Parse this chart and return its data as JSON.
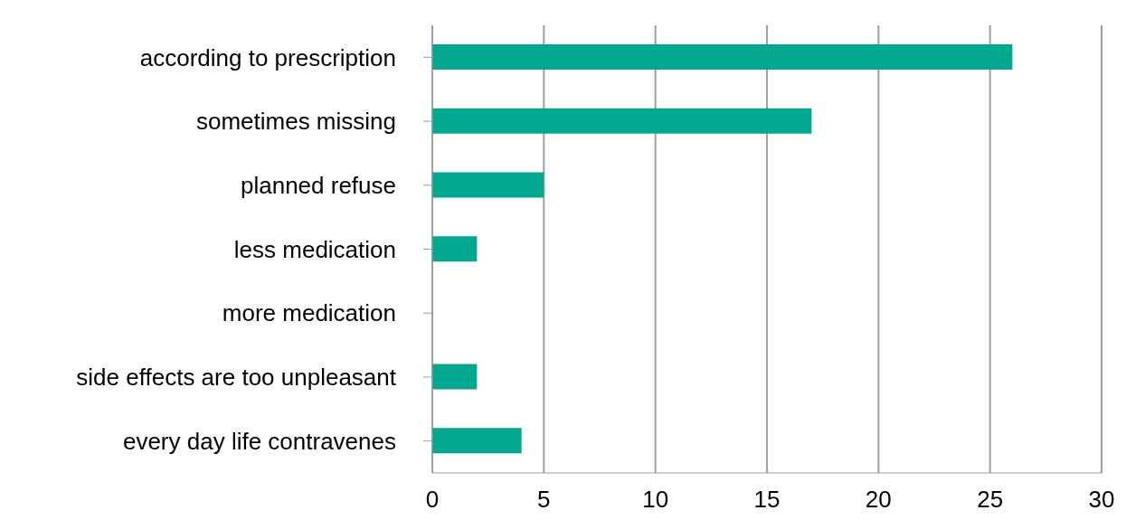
{
  "chart_data": {
    "type": "bar",
    "orientation": "horizontal",
    "categories": [
      "according to prescription",
      "sometimes missing",
      "planned refuse",
      "less medication",
      "more medication",
      "side effects are too unpleasant",
      "every day life contravenes"
    ],
    "values": [
      26,
      17,
      5,
      2,
      0,
      2,
      4
    ],
    "color": "#00a88f",
    "xlim": [
      0,
      30
    ],
    "xticks": [
      0,
      5,
      10,
      15,
      20,
      25,
      30
    ],
    "grid": "x",
    "legend": false
  }
}
